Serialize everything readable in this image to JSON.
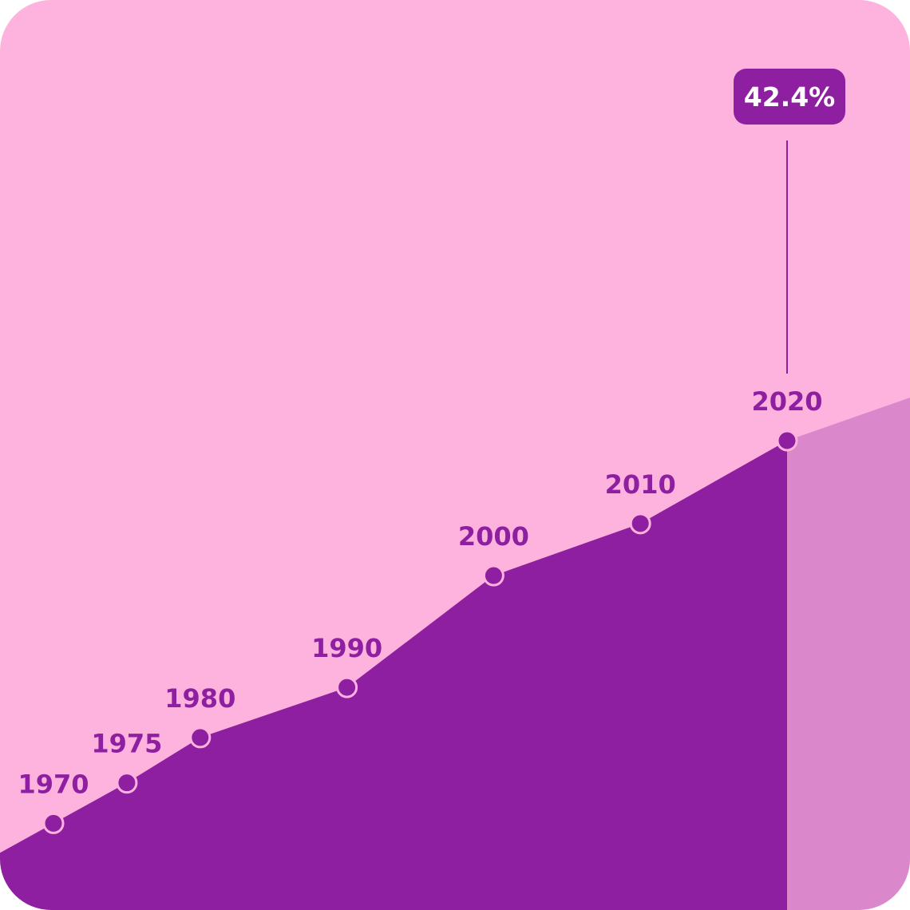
{
  "colors": {
    "background": "#FDB3DE",
    "area_fill": "#8E1FA0",
    "projection_fill": "#DA88CB",
    "label_text": "#8E1FA0",
    "point_outline": "#FDB3DE",
    "callout_bg": "#8E1FA0",
    "callout_text": "#FFFFFF"
  },
  "chart_data": {
    "type": "area",
    "title": "",
    "xlabel": "",
    "ylabel": "",
    "grid": false,
    "legend": "none",
    "x": [
      1970,
      1975,
      1980,
      1990,
      2000,
      2010,
      2020
    ],
    "x_labels": [
      "1970",
      "1975",
      "1980",
      "1990",
      "2000",
      "2010",
      "2020"
    ],
    "series": [
      {
        "values": [
          2.7,
          6.9,
          11.6,
          16.8,
          28.4,
          33.8,
          42.4
        ]
      }
    ],
    "highlight": {
      "x": 2020,
      "label": "42.4%"
    },
    "projection_after": 2020
  }
}
